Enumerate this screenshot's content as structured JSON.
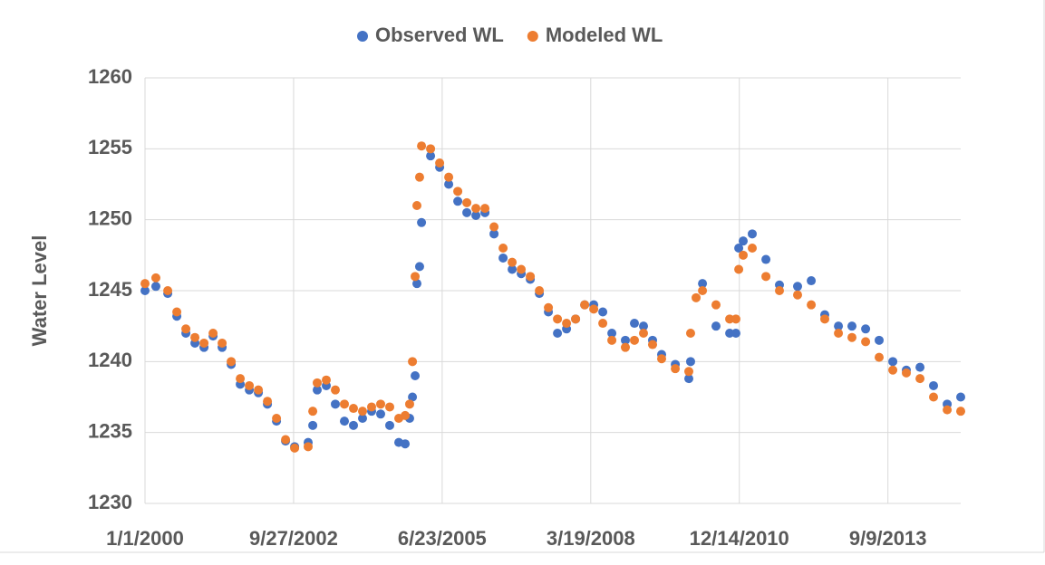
{
  "chart_data": {
    "type": "scatter",
    "y_label": "Water Level",
    "legend": "top",
    "grid": true,
    "xlim": [
      36526,
      42016
    ],
    "xticks": [
      {
        "value": 36526,
        "label": "1/1/2000"
      },
      {
        "value": 37526,
        "label": "9/27/2002"
      },
      {
        "value": 38526,
        "label": "6/23/2005"
      },
      {
        "value": 39526,
        "label": "3/19/2008"
      },
      {
        "value": 40526,
        "label": "12/14/2010"
      },
      {
        "value": 41526,
        "label": "9/9/2013"
      }
    ],
    "ylim": [
      1230,
      1260
    ],
    "yticks": [
      1230,
      1235,
      1240,
      1245,
      1250,
      1255,
      1260
    ],
    "x": [
      36526,
      36599,
      36679,
      36740,
      36801,
      36862,
      36923,
      36984,
      37045,
      37106,
      37167,
      37228,
      37289,
      37350,
      37411,
      37472,
      37533,
      37624,
      37655,
      37685,
      37746,
      37807,
      37868,
      37929,
      37990,
      38051,
      38112,
      38173,
      38234,
      38277,
      38307,
      38326,
      38344,
      38356,
      38374,
      38387,
      38448,
      38509,
      38570,
      38631,
      38692,
      38753,
      38814,
      38875,
      38936,
      38997,
      39058,
      39119,
      39180,
      39241,
      39302,
      39363,
      39424,
      39485,
      39546,
      39607,
      39668,
      39759,
      39820,
      39881,
      39942,
      40003,
      40095,
      40186,
      40198,
      40235,
      40278,
      40369,
      40461,
      40503,
      40522,
      40552,
      40613,
      40705,
      40796,
      40918,
      41010,
      41101,
      41193,
      41284,
      41376,
      41467,
      41559,
      41650,
      41742,
      41833,
      41925,
      42016
    ],
    "series": [
      {
        "name": "Observed WL",
        "color": "#4472c4",
        "values": [
          1245,
          1245.3,
          1244.8,
          1243.2,
          1242,
          1241.3,
          1241,
          1241.8,
          1241,
          1239.8,
          1238.4,
          1238,
          1237.8,
          1237,
          1235.8,
          1234.4,
          1234,
          1234.3,
          1235.5,
          1238,
          1238.3,
          1237,
          1235.8,
          1235.5,
          1236,
          1236.5,
          1236.3,
          1235.5,
          1234.3,
          1234.2,
          1236,
          1237.5,
          1239,
          1245.5,
          1246.7,
          1249.8,
          1254.5,
          1253.7,
          1252.5,
          1251.3,
          1250.5,
          1250.3,
          1250.5,
          1249,
          1247.3,
          1246.5,
          1246.2,
          1245.8,
          1244.8,
          1243.5,
          1242,
          1242.3,
          1243,
          1244,
          1244,
          1243.5,
          1242,
          1241.5,
          1242.7,
          1242.5,
          1241.5,
          1240.5,
          1239.8,
          1238.8,
          1240,
          null,
          1245.5,
          1242.5,
          1242,
          1242,
          1248,
          1248.5,
          1249,
          1247.2,
          1245.4,
          1245.3,
          1245.7,
          1243.3,
          1242.5,
          1242.5,
          1242.3,
          1241.5,
          1240,
          1239.4,
          1239.6,
          1238.3,
          1237,
          1237.5
        ]
      },
      {
        "name": "Modeled WL",
        "color": "#ed7d31",
        "values": [
          1245.5,
          1245.9,
          1245,
          1243.5,
          1242.3,
          1241.7,
          1241.3,
          1242,
          1241.3,
          1240,
          1238.8,
          1238.3,
          1238,
          1237.2,
          1236,
          1234.5,
          1233.9,
          1234,
          1236.5,
          1238.5,
          1238.7,
          1238,
          1237,
          1236.7,
          1236.5,
          1236.8,
          1237,
          1236.8,
          1236,
          1236.2,
          1237,
          1240,
          1246,
          1251,
          1253,
          1255.2,
          1255,
          1254,
          1253,
          1252,
          1251.2,
          1250.8,
          1250.8,
          1249.5,
          1248,
          1247,
          1246.5,
          1246,
          1245,
          1243.8,
          1243,
          1242.7,
          1243,
          1244,
          1243.7,
          1242.7,
          1241.5,
          1241,
          1241.5,
          1242,
          1241.2,
          1240.2,
          1239.5,
          1239.3,
          1242,
          1244.5,
          1245,
          1244,
          1243,
          1243,
          1246.5,
          1247.5,
          1248,
          1246,
          1245,
          1244.7,
          1244,
          1243,
          1242,
          1241.7,
          1241.4,
          1240.3,
          1239.4,
          1239.2,
          1238.8,
          1237.5,
          1236.6,
          1236.5
        ]
      }
    ]
  }
}
